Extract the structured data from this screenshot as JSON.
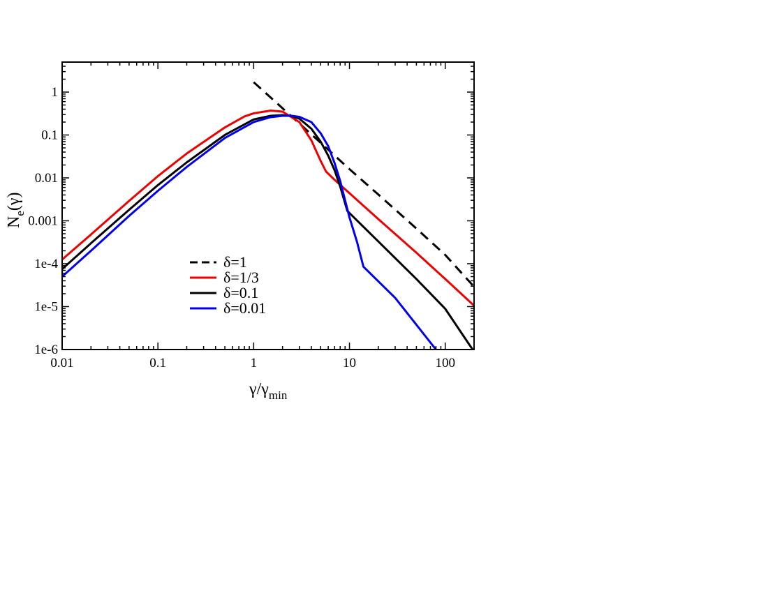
{
  "chart_data": {
    "type": "line",
    "title": "",
    "xlabel": {
      "main": "γ/γ",
      "sub": "min"
    },
    "ylabel": {
      "main": "N",
      "sub": "e",
      "tail": "(γ)"
    },
    "xscale": "log",
    "yscale": "log",
    "xlim": [
      0.01,
      200
    ],
    "ylim": [
      1e-06,
      5
    ],
    "grid": false,
    "legend_placement": "lower-center",
    "x_ticks": [
      {
        "value": 0.01,
        "label": "0.01"
      },
      {
        "value": 0.1,
        "label": "0.1"
      },
      {
        "value": 1,
        "label": "1"
      },
      {
        "value": 10,
        "label": "10"
      },
      {
        "value": 100,
        "label": "100"
      }
    ],
    "y_ticks": [
      {
        "value": 1e-06,
        "label": "1e-6"
      },
      {
        "value": 1e-05,
        "label": "1e-5"
      },
      {
        "value": 0.0001,
        "label": "1e-4"
      },
      {
        "value": 0.001,
        "label": "0.001"
      },
      {
        "value": 0.01,
        "label": "0.01"
      },
      {
        "value": 0.1,
        "label": "0.1"
      },
      {
        "value": 1,
        "label": "1"
      }
    ],
    "series": [
      {
        "name": "δ=1",
        "color": "#000000",
        "dash": "dashed",
        "x": [
          1.0,
          2.0,
          5.0,
          10.0,
          20.0,
          50.0,
          100.0,
          200.0
        ],
        "y": [
          1.7,
          0.42,
          0.066,
          0.016,
          0.0041,
          0.00066,
          0.00016,
          2.9e-05
        ]
      },
      {
        "name": "δ=1/3",
        "color": "#ee0000",
        "dash": "solid",
        "x": [
          0.01,
          0.02,
          0.05,
          0.1,
          0.2,
          0.5,
          0.8,
          1.0,
          1.5,
          2.0,
          3.0,
          4.0,
          5.0,
          5.7,
          7.0,
          10.0,
          20.0,
          50.0,
          100.0,
          200.0
        ],
        "y": [
          0.000125,
          0.00048,
          0.0029,
          0.011,
          0.037,
          0.15,
          0.27,
          0.32,
          0.37,
          0.35,
          0.2,
          0.075,
          0.025,
          0.014,
          0.009,
          0.0044,
          0.0011,
          0.00018,
          4.4e-05,
          1.05e-05
        ]
      },
      {
        "name": "δ=0.1",
        "color": "#000000",
        "dash": "solid",
        "x": [
          0.01,
          0.02,
          0.05,
          0.1,
          0.2,
          0.5,
          1.0,
          1.5,
          2.0,
          2.5,
          3.0,
          4.0,
          5.0,
          6.0,
          7.0,
          8.0,
          9.5,
          20.0,
          50.0,
          100.0,
          200.0
        ],
        "y": [
          7.5e-05,
          0.0003,
          0.0018,
          0.0068,
          0.023,
          0.1,
          0.23,
          0.28,
          0.29,
          0.275,
          0.24,
          0.14,
          0.07,
          0.033,
          0.015,
          0.0063,
          0.0017,
          0.00033,
          4.4e-05,
          8.9e-06,
          8.9e-07
        ]
      },
      {
        "name": "δ=0.01",
        "color": "#0000ee",
        "dash": "solid",
        "x": [
          0.01,
          0.02,
          0.05,
          0.1,
          0.2,
          0.5,
          1.0,
          1.5,
          2.0,
          2.5,
          3.0,
          4.0,
          5.0,
          6.0,
          7.0,
          8.0,
          9.0,
          10.0,
          12.0,
          14.0,
          30.0,
          80.0
        ],
        "y": [
          5e-05,
          0.0002,
          0.0013,
          0.005,
          0.018,
          0.085,
          0.2,
          0.26,
          0.28,
          0.28,
          0.265,
          0.2,
          0.11,
          0.055,
          0.022,
          0.0085,
          0.003,
          0.0012,
          0.00032,
          8.5e-05,
          1.6e-05,
          1e-06
        ]
      }
    ]
  }
}
